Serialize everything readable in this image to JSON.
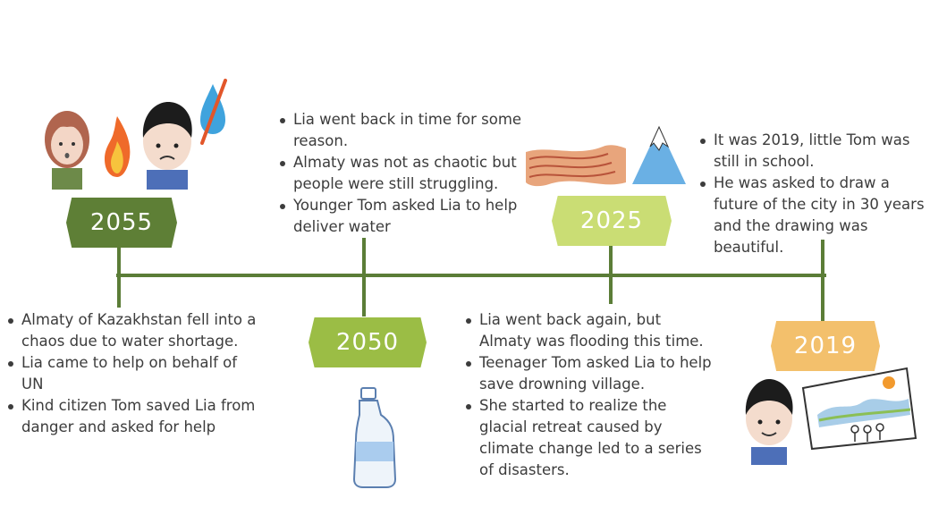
{
  "colors": {
    "line": "#5b7d37",
    "y2055": "#5e7f36",
    "y2050": "#9bbd45",
    "y2025": "#cadd74",
    "y2019": "#f3c06c"
  },
  "milestones": [
    {
      "year": "2055",
      "notes": [
        "Almaty of Kazakhstan fell into a chaos due to water shortage.",
        "Lia came to help on behalf of UN",
        "Kind citizen Tom saved Lia from danger and asked for help"
      ],
      "icons": [
        "girl-face-icon",
        "fire-icon",
        "worried-boy-icon",
        "no-water-drop-icon"
      ]
    },
    {
      "year": "2050",
      "notes": [
        "Lia went back in time for some reason.",
        "Almaty was not as chaotic but people were still struggling.",
        "Younger Tom asked Lia to help deliver water"
      ],
      "icons": [
        "water-bottle-icon"
      ]
    },
    {
      "year": "2025",
      "notes": [
        "Lia went back again, but Almaty was flooding this time.",
        "Teenager Tom asked Lia to help save drowning village.",
        "She started to realize the glacial retreat caused by climate change led to a series of disasters."
      ],
      "icons": [
        "flood-waves-icon",
        "mountain-icon"
      ]
    },
    {
      "year": "2019",
      "notes": [
        "It was 2019, little Tom was still in school.",
        "He was asked to draw a future of the city in 30 years and the drawing was beautiful."
      ],
      "icons": [
        "boy-face-icon",
        "city-drawing-icon"
      ]
    }
  ]
}
